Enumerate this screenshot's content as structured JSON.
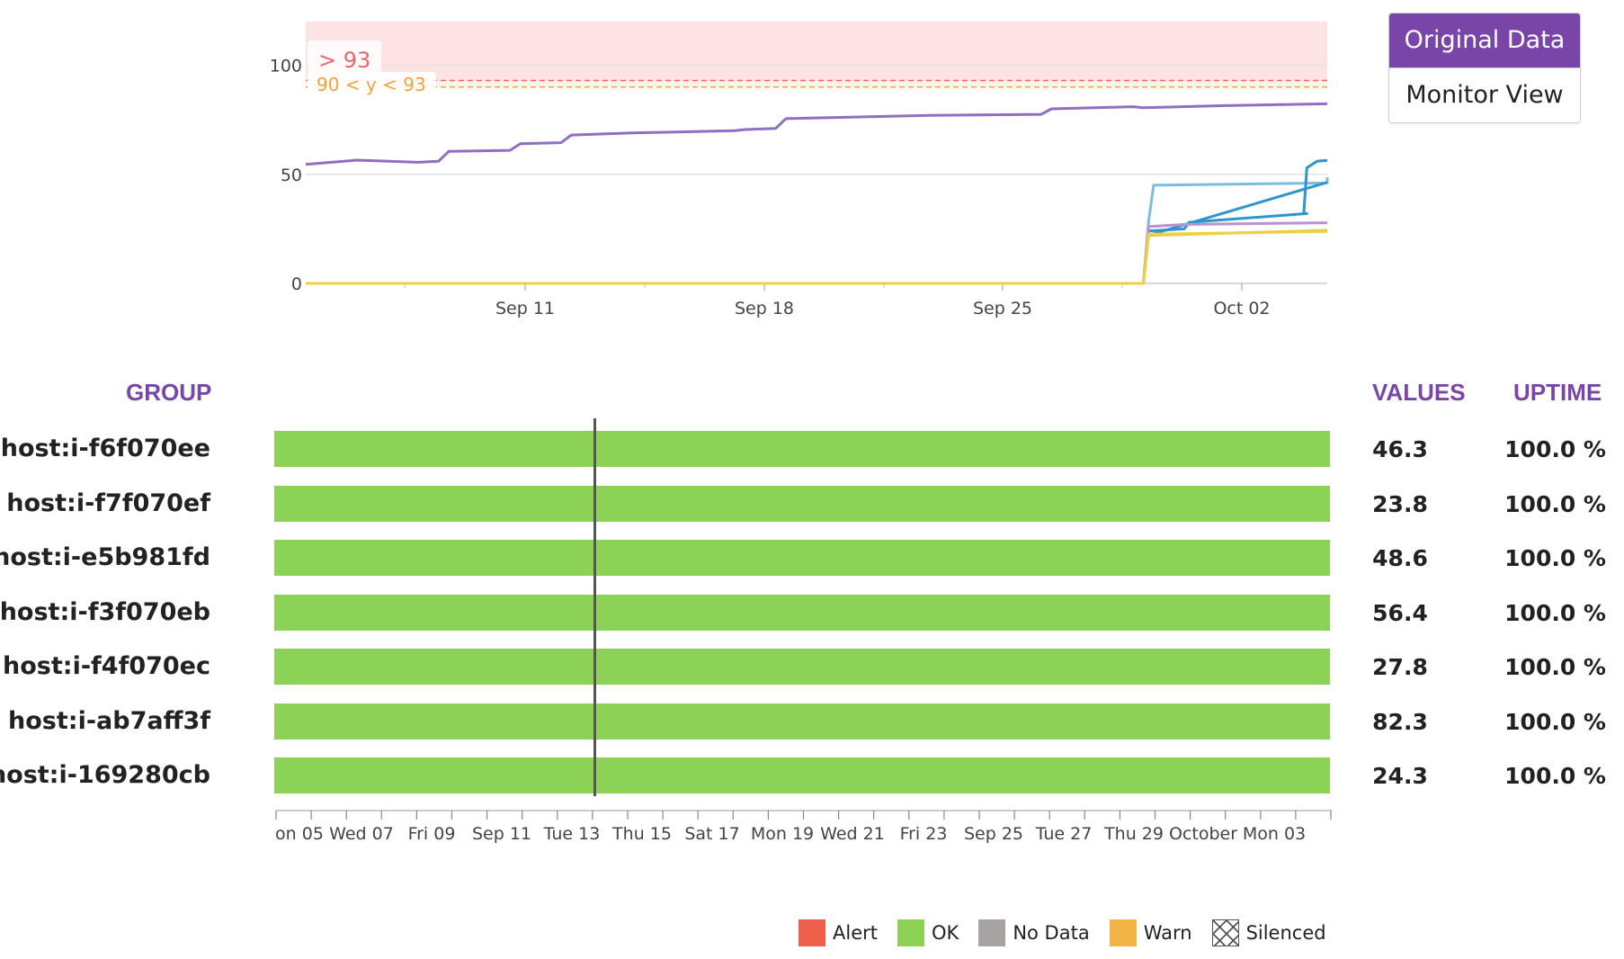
{
  "view_toggle": {
    "original_label": "Original Data",
    "monitor_label": "Monitor View",
    "active": "original"
  },
  "colors": {
    "accent": "#7a45a8",
    "ok": "#8cd257",
    "alert": "#ec5f4a",
    "no_data": "#a8a3a3",
    "warn": "#f2b545",
    "threshold_alert": "#f0646a",
    "threshold_warn": "#f5a139"
  },
  "chart_data": {
    "type": "line",
    "x_ticks": [
      "Sep 11",
      "Sep 18",
      "Sep 25",
      "Oct 02"
    ],
    "y_ticks": [
      "0",
      "50",
      "100"
    ],
    "ylim": [
      0,
      120
    ],
    "threshold_alert_label": "> 93",
    "threshold_warn_label": "90 < y < 93",
    "threshold_alert_value": 93,
    "threshold_warn_value": 90,
    "series": [
      {
        "name": "host:i-ab7aff3f",
        "color": "#8f6fc1",
        "points": [
          [
            0,
            54.5
          ],
          [
            0.05,
            56.5
          ],
          [
            0.11,
            55.5
          ],
          [
            0.13,
            56
          ],
          [
            0.14,
            60.5
          ],
          [
            0.2,
            61
          ],
          [
            0.21,
            64
          ],
          [
            0.25,
            64.5
          ],
          [
            0.26,
            68
          ],
          [
            0.32,
            69
          ],
          [
            0.42,
            70
          ],
          [
            0.43,
            70.5
          ],
          [
            0.46,
            71
          ],
          [
            0.47,
            75.5
          ],
          [
            0.61,
            77
          ],
          [
            0.72,
            77.5
          ],
          [
            0.73,
            80
          ],
          [
            0.81,
            81
          ],
          [
            0.82,
            80.5
          ],
          [
            0.9,
            81.5
          ],
          [
            1,
            82.3
          ]
        ]
      },
      {
        "name": "host:i-e5b981fd",
        "color": "#7bbde2",
        "points": [
          [
            0,
            0
          ],
          [
            0.82,
            0
          ],
          [
            0.825,
            28
          ],
          [
            0.83,
            45
          ],
          [
            1,
            46
          ],
          [
            1,
            48.6
          ]
        ]
      },
      {
        "name": "host:i-f3f070eb",
        "color": "#2f95cc",
        "points": [
          [
            0,
            0
          ],
          [
            0.82,
            0
          ],
          [
            0.825,
            24
          ],
          [
            0.86,
            25
          ],
          [
            0.865,
            28
          ],
          [
            0.98,
            32
          ],
          [
            0.977,
            32
          ],
          [
            0.98,
            53
          ],
          [
            0.99,
            56
          ],
          [
            1,
            56.4
          ]
        ]
      },
      {
        "name": "host:i-f6f070ee",
        "color": "#2f95cc",
        "points": [
          [
            0,
            0
          ],
          [
            0.82,
            0
          ],
          [
            0.825,
            22
          ],
          [
            1,
            46.3
          ]
        ]
      },
      {
        "name": "host:i-f4f070ec",
        "color": "#b892d4",
        "points": [
          [
            0,
            0
          ],
          [
            0.82,
            0
          ],
          [
            0.825,
            26
          ],
          [
            0.86,
            27
          ],
          [
            1,
            27.8
          ]
        ]
      },
      {
        "name": "host:i-169280cb",
        "color": "#e9c52a",
        "points": [
          [
            0,
            0
          ],
          [
            0.82,
            0
          ],
          [
            0.825,
            22
          ],
          [
            0.9,
            23
          ],
          [
            1,
            24.3
          ]
        ]
      },
      {
        "name": "host:i-f7f070ef",
        "color": "#f0d040",
        "points": [
          [
            0,
            0
          ],
          [
            0.82,
            0
          ],
          [
            0.825,
            22.5
          ],
          [
            1,
            23.8
          ]
        ]
      }
    ]
  },
  "table": {
    "group_header": "GROUP",
    "values_header": "VALUES",
    "uptime_header": "UPTIME",
    "rows": [
      {
        "group": "host:i-f6f070ee",
        "value": "46.3",
        "uptime": "100.0 %"
      },
      {
        "group": "host:i-f7f070ef",
        "value": "23.8",
        "uptime": "100.0 %"
      },
      {
        "group": "host:i-e5b981fd",
        "value": "48.6",
        "uptime": "100.0 %"
      },
      {
        "group": "host:i-f3f070eb",
        "value": "56.4",
        "uptime": "100.0 %"
      },
      {
        "group": "host:i-f4f070ec",
        "value": "27.8",
        "uptime": "100.0 %"
      },
      {
        "group": "host:i-ab7aff3f",
        "value": "82.3",
        "uptime": "100.0 %"
      },
      {
        "group": "host:i-169280cb",
        "value": "24.3",
        "uptime": "100.0 %"
      }
    ],
    "timeline_ticks": [
      "on 05",
      "Wed 07",
      "Fri 09",
      "Sep 11",
      "Tue 13",
      "Thu 15",
      "Sat 17",
      "Mon 19",
      "Wed 21",
      "Fri 23",
      "Sep 25",
      "Tue 27",
      "Thu 29",
      "October",
      "Mon 03"
    ]
  },
  "legend": {
    "items": [
      {
        "label": "Alert",
        "color": "#ec5f4a"
      },
      {
        "label": "OK",
        "color": "#8cd257"
      },
      {
        "label": "No Data",
        "color": "#a8a3a3"
      },
      {
        "label": "Warn",
        "color": "#f2b545"
      },
      {
        "label": "Silenced",
        "color": "silenced"
      }
    ]
  }
}
